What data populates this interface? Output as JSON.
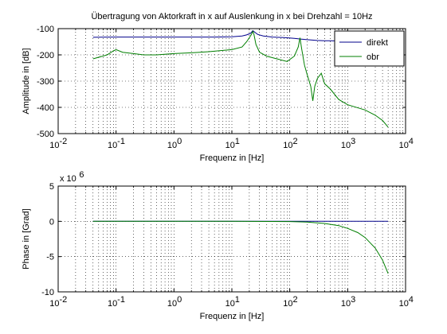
{
  "figure": {
    "background": "#ffffff"
  },
  "chart_data": [
    {
      "type": "line",
      "title": "Übertragung von Aktorkraft in x auf Auslenkung in x bei Drehzahl = 10Hz",
      "xlabel": "Frequenz in [Hz]",
      "ylabel": "Amplitude in [dB]",
      "xscale": "log",
      "xlim": [
        0.01,
        10000
      ],
      "ylim": [
        -500,
        -100
      ],
      "x_ticks": [
        0.01,
        0.1,
        1,
        10,
        100,
        1000,
        10000
      ],
      "x_tick_labels": [
        {
          "base": "10",
          "exp": "-2"
        },
        {
          "base": "10",
          "exp": "-1"
        },
        {
          "base": "10",
          "exp": "0"
        },
        {
          "base": "10",
          "exp": "1"
        },
        {
          "base": "10",
          "exp": "2"
        },
        {
          "base": "10",
          "exp": "3"
        },
        {
          "base": "10",
          "exp": "4"
        }
      ],
      "y_ticks": [
        -500,
        -400,
        -300,
        -200,
        -100
      ],
      "y_tick_labels": [
        "-500",
        "-400",
        "-300",
        "-200",
        "-100"
      ],
      "grid": true,
      "legend": {
        "position": "top-right",
        "entries": [
          "direkt",
          "obr"
        ]
      },
      "series": [
        {
          "name": "direkt",
          "color": "#00008b",
          "x": [
            0.04,
            0.1,
            1,
            5,
            10,
            15,
            18,
            21,
            23,
            25,
            28,
            35,
            50,
            80,
            120,
            160,
            200,
            300,
            400,
            500,
            700,
            1000,
            2000,
            3000,
            5000
          ],
          "y": [
            -133,
            -132,
            -132,
            -132,
            -131,
            -128,
            -124,
            -118,
            -108,
            -114,
            -122,
            -128,
            -132,
            -134,
            -137,
            -140,
            -142,
            -145,
            -146,
            -146,
            -147,
            -148,
            -148,
            -148,
            -148
          ]
        },
        {
          "name": "obr",
          "color": "#007f00",
          "x": [
            0.04,
            0.07,
            0.09,
            0.1,
            0.13,
            0.2,
            0.3,
            0.5,
            1,
            2,
            4,
            7,
            10,
            15,
            18,
            20,
            22,
            23,
            24,
            26,
            30,
            40,
            60,
            90,
            120,
            140,
            150,
            160,
            180,
            200,
            230,
            250,
            270,
            300,
            350,
            400,
            500,
            700,
            1000,
            2000,
            3000,
            4000,
            5000
          ],
          "y": [
            -215,
            -200,
            -185,
            -180,
            -190,
            -195,
            -200,
            -200,
            -195,
            -192,
            -188,
            -183,
            -180,
            -170,
            -150,
            -135,
            -120,
            -110,
            -120,
            -160,
            -190,
            -205,
            -215,
            -225,
            -205,
            -170,
            -135,
            -175,
            -240,
            -275,
            -320,
            -375,
            -320,
            -290,
            -270,
            -310,
            -330,
            -370,
            -390,
            -410,
            -430,
            -450,
            -475
          ]
        }
      ]
    },
    {
      "type": "line",
      "title": "",
      "xlabel": "Frequenz in [Hz]",
      "ylabel": "Phase in [Grad]",
      "xscale": "log",
      "xlim": [
        0.01,
        10000
      ],
      "ylim": [
        -10,
        5
      ],
      "y_multiplier": {
        "text": "x 10",
        "exp": "6"
      },
      "x_ticks": [
        0.01,
        0.1,
        1,
        10,
        100,
        1000,
        10000
      ],
      "x_tick_labels": [
        {
          "base": "10",
          "exp": "-2"
        },
        {
          "base": "10",
          "exp": "-1"
        },
        {
          "base": "10",
          "exp": "0"
        },
        {
          "base": "10",
          "exp": "1"
        },
        {
          "base": "10",
          "exp": "2"
        },
        {
          "base": "10",
          "exp": "3"
        },
        {
          "base": "10",
          "exp": "4"
        }
      ],
      "y_ticks": [
        -10,
        -5,
        0,
        5
      ],
      "y_tick_labels": [
        "-10",
        "-5",
        "0",
        "5"
      ],
      "grid": true,
      "series": [
        {
          "color": "#00008b",
          "x": [
            0.04,
            0.1,
            1,
            10,
            100,
            1000,
            5000
          ],
          "y": [
            0,
            0,
            0,
            0,
            0,
            0,
            0
          ]
        },
        {
          "color": "#007f00",
          "x": [
            0.04,
            1,
            10,
            100,
            200,
            400,
            700,
            1000,
            1500,
            2000,
            3000,
            4000,
            5000
          ],
          "y": [
            0,
            0,
            0,
            -0.03,
            -0.1,
            -0.3,
            -0.6,
            -1.0,
            -1.6,
            -2.3,
            -3.8,
            -5.5,
            -7.4
          ]
        }
      ]
    }
  ]
}
